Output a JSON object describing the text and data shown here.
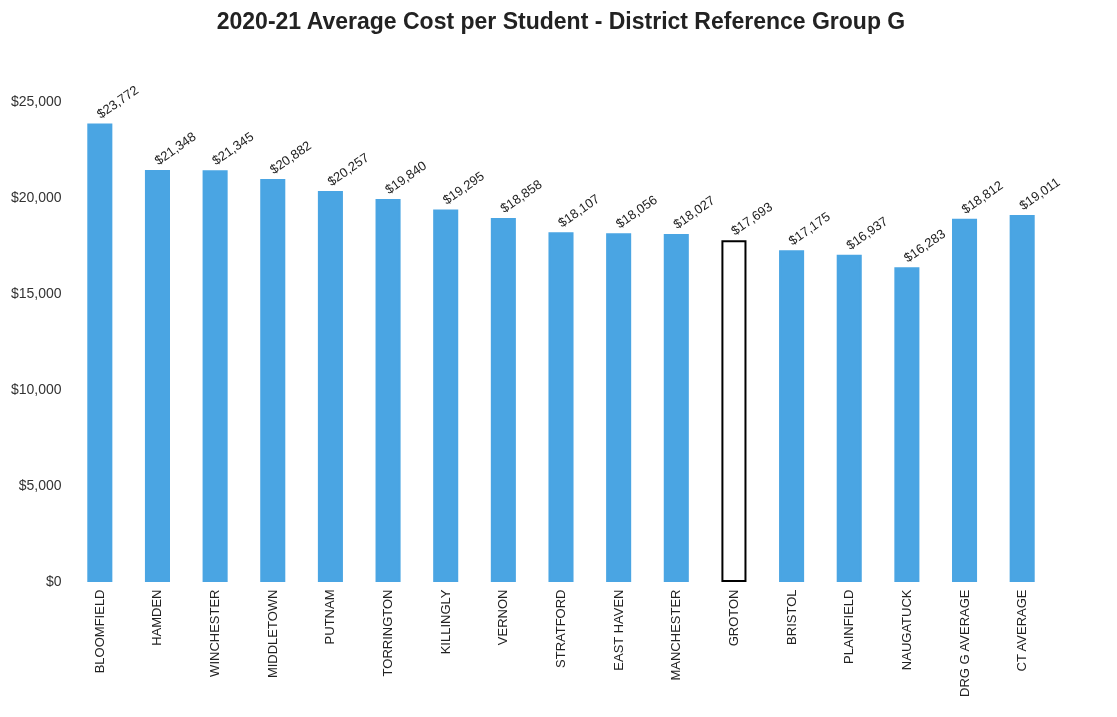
{
  "chart_data": {
    "type": "bar",
    "title": "2020-21 Average Cost per Student - District Reference Group G",
    "categories": [
      "BLOOMFIELD",
      "HAMDEN",
      "WINCHESTER",
      "MIDDLETOWN",
      "PUTNAM",
      "TORRINGTON",
      "KILLINGLY",
      "VERNON",
      "STRATFORD",
      "EAST HAVEN",
      "MANCHESTER",
      "GROTON",
      "BRISTOL",
      "PLAINFIELD",
      "NAUGATUCK",
      "DRG G AVERAGE",
      "CT AVERAGE"
    ],
    "values": [
      23772,
      21348,
      21345,
      20882,
      20257,
      19840,
      19295,
      18858,
      18107,
      18056,
      18027,
      17693,
      17175,
      16937,
      16283,
      18812,
      19011
    ],
    "colors": [
      "#4aa5e3",
      "#4aa5e3",
      "#4aa5e3",
      "#4aa5e3",
      "#4aa5e3",
      "#4aa5e3",
      "#4aa5e3",
      "#4aa5e3",
      "#4aa5e3",
      "#4aa5e3",
      "#4aa5e3",
      "#ffffff",
      "#4aa5e3",
      "#4aa5e3",
      "#4aa5e3",
      "#4aa5e3",
      "#4aa5e3"
    ],
    "ylim": [
      0,
      25000
    ],
    "yticks": [
      {
        "value": 0,
        "label": "$0"
      },
      {
        "value": 5000,
        "label": "$5,000"
      },
      {
        "value": 10000,
        "label": "$10,000"
      },
      {
        "value": 15000,
        "label": "$15,000"
      },
      {
        "value": 20000,
        "label": "$20,000"
      },
      {
        "value": 25000,
        "label": "$25,000"
      }
    ],
    "value_labels": [
      "$23,772",
      "$21,348",
      "$21,345",
      "$20,882",
      "$20,257",
      "$19,840",
      "$19,295",
      "$18,858",
      "$18,107",
      "$18,056",
      "$18,027",
      "$17,693",
      "$17,175",
      "$16,937",
      "$16,283",
      "$18,812",
      "$19,011"
    ],
    "grid": false
  }
}
